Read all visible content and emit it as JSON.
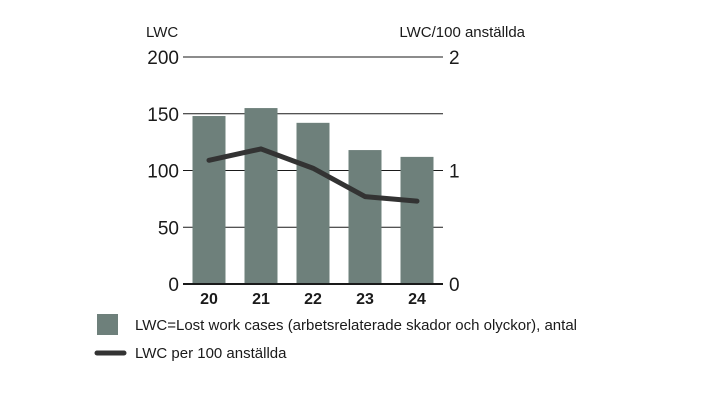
{
  "chart_data": {
    "type": "bar",
    "categories": [
      "20",
      "21",
      "22",
      "23",
      "24"
    ],
    "series": [
      {
        "name": "LWC=Lost work cases (arbetsrelaterade skador och olyckor), antal",
        "kind": "bar",
        "axis": "left",
        "color": "#6e807b",
        "values": [
          148,
          155,
          142,
          118,
          112
        ]
      },
      {
        "name": "LWC per 100 anställda",
        "kind": "line",
        "axis": "right",
        "color": "#333333",
        "values": [
          1.09,
          1.19,
          1.02,
          0.77,
          0.73
        ]
      }
    ],
    "y_left": {
      "label": "LWC",
      "ylim": [
        0,
        200
      ],
      "ticks": [
        0,
        50,
        100,
        150,
        200
      ]
    },
    "y_right": {
      "label": "LWC/100 anställda",
      "ylim": [
        0,
        2
      ],
      "ticks": [
        0,
        1,
        2
      ]
    },
    "grid": true,
    "legend_position": "bottom-left"
  }
}
